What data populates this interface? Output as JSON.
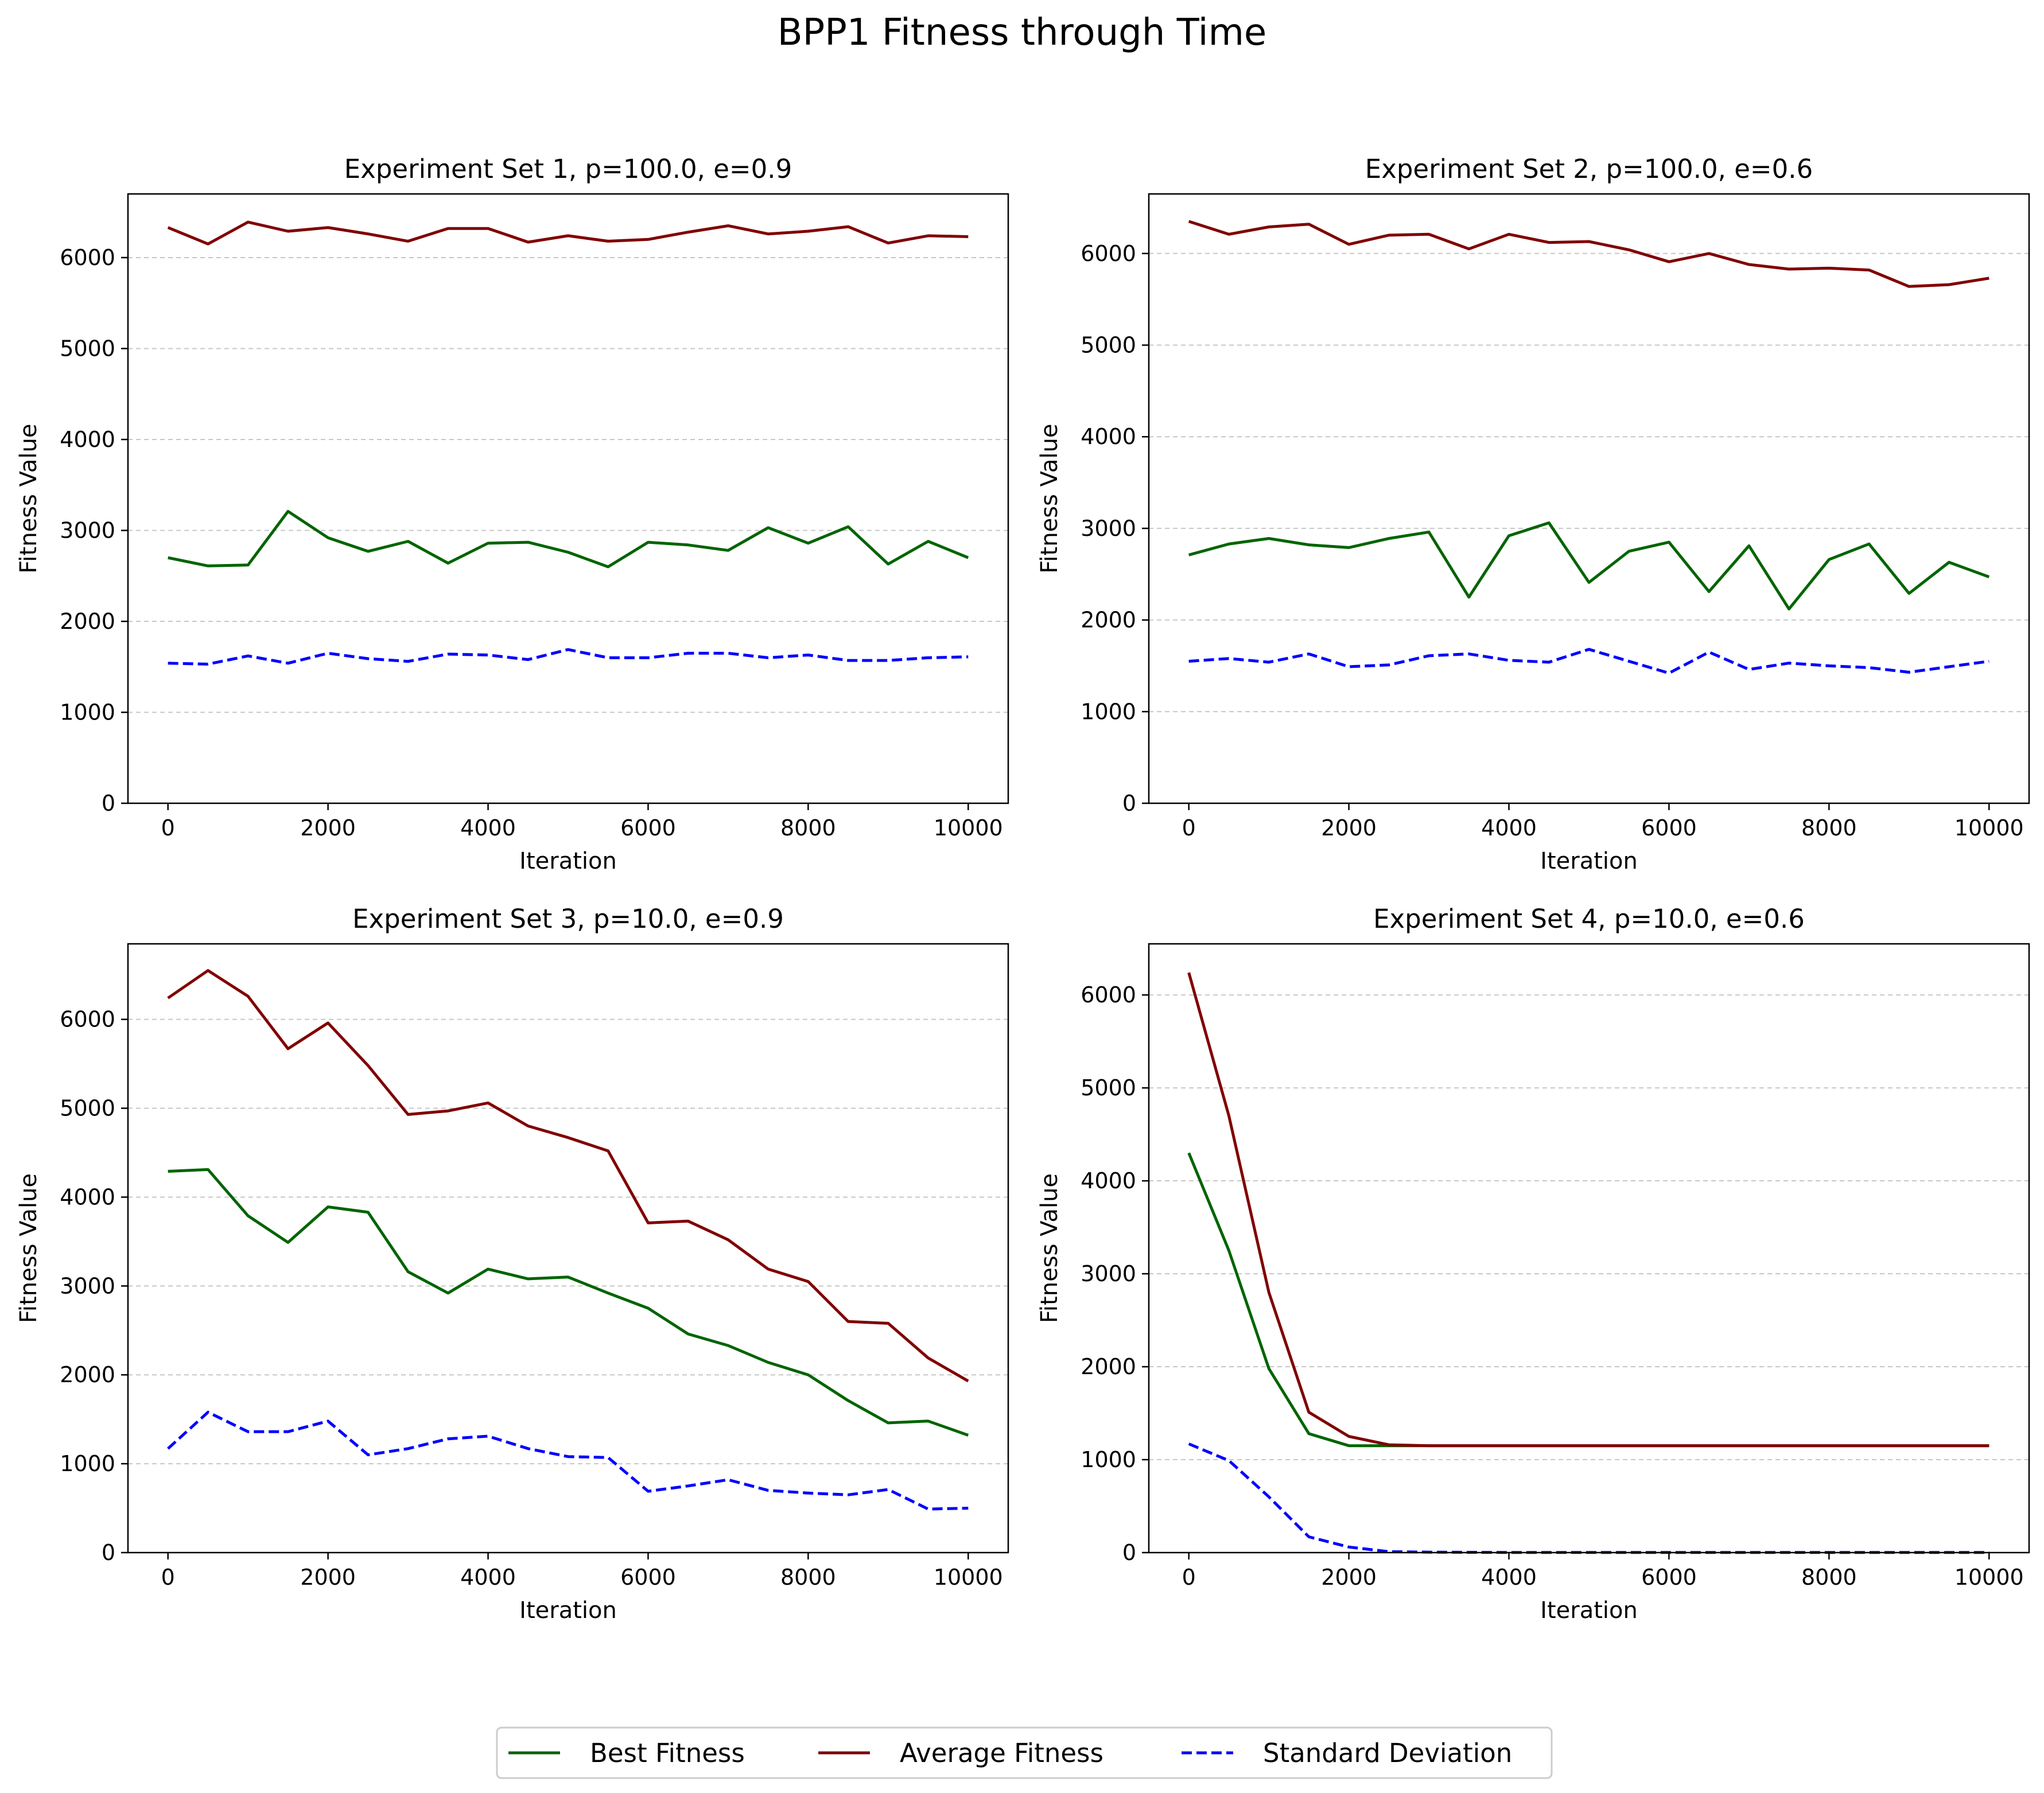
{
  "figure": {
    "suptitle": "BPP1 Fitness through Time"
  },
  "legend": {
    "placement": "bottom-center",
    "entries": [
      {
        "label": "Best Fitness",
        "color": "#006400",
        "dash": "solid"
      },
      {
        "label": "Average Fitness",
        "color": "#800000",
        "dash": "solid"
      },
      {
        "label": "Standard Deviation",
        "color": "#0000FF",
        "dash": "dashed"
      }
    ]
  },
  "chart_data": [
    {
      "type": "line",
      "title": "Experiment Set 1, p=100.0, e=0.9",
      "xlabel": "Iteration",
      "ylabel": "Fitness Value",
      "xlim": [
        -500,
        10500
      ],
      "ylim": [
        0,
        6700
      ],
      "xticks": [
        0,
        2000,
        4000,
        6000,
        8000,
        10000
      ],
      "yticks": [
        0,
        1000,
        2000,
        3000,
        4000,
        5000,
        6000
      ],
      "grid": "y-dashed",
      "x": [
        0,
        500,
        1000,
        1500,
        2000,
        2500,
        3000,
        3500,
        4000,
        4500,
        5000,
        5500,
        6000,
        6500,
        7000,
        7500,
        8000,
        8500,
        9000,
        9500,
        10000
      ],
      "series": [
        {
          "name": "Best Fitness",
          "color": "#006400",
          "dash": "solid",
          "values": [
            2700,
            2610,
            2620,
            3210,
            2920,
            2770,
            2880,
            2640,
            2860,
            2870,
            2760,
            2600,
            2870,
            2840,
            2780,
            3030,
            2860,
            3040,
            2630,
            2880,
            2700
          ]
        },
        {
          "name": "Average Fitness",
          "color": "#800000",
          "dash": "solid",
          "values": [
            6330,
            6150,
            6390,
            6290,
            6330,
            6260,
            6180,
            6320,
            6320,
            6170,
            6240,
            6180,
            6200,
            6280,
            6350,
            6260,
            6290,
            6340,
            6160,
            6240,
            6230
          ]
        },
        {
          "name": "Standard Deviation",
          "color": "#0000FF",
          "dash": "dashed",
          "values": [
            1540,
            1530,
            1620,
            1540,
            1650,
            1590,
            1560,
            1640,
            1630,
            1580,
            1690,
            1600,
            1600,
            1650,
            1650,
            1600,
            1630,
            1570,
            1570,
            1600,
            1610
          ]
        }
      ]
    },
    {
      "type": "line",
      "title": "Experiment Set 2, p=100.0, e=0.6",
      "xlabel": "Iteration",
      "ylabel": "Fitness Value",
      "xlim": [
        -500,
        10500
      ],
      "ylim": [
        0,
        6650
      ],
      "xticks": [
        0,
        2000,
        4000,
        6000,
        8000,
        10000
      ],
      "yticks": [
        0,
        1000,
        2000,
        3000,
        4000,
        5000,
        6000
      ],
      "grid": "y-dashed",
      "x": [
        0,
        500,
        1000,
        1500,
        2000,
        2500,
        3000,
        3500,
        4000,
        4500,
        5000,
        5500,
        6000,
        6500,
        7000,
        7500,
        8000,
        8500,
        9000,
        9500,
        10000
      ],
      "series": [
        {
          "name": "Best Fitness",
          "color": "#006400",
          "dash": "solid",
          "values": [
            2710,
            2830,
            2890,
            2820,
            2790,
            2890,
            2960,
            2250,
            2920,
            3060,
            2410,
            2750,
            2850,
            2310,
            2810,
            2120,
            2660,
            2830,
            2290,
            2630,
            2470
          ]
        },
        {
          "name": "Average Fitness",
          "color": "#800000",
          "dash": "solid",
          "values": [
            6350,
            6210,
            6290,
            6320,
            6100,
            6200,
            6210,
            6050,
            6210,
            6120,
            6130,
            6040,
            5910,
            6000,
            5880,
            5830,
            5840,
            5820,
            5640,
            5660,
            5730
          ]
        },
        {
          "name": "Standard Deviation",
          "color": "#0000FF",
          "dash": "dashed",
          "values": [
            1550,
            1580,
            1540,
            1630,
            1490,
            1510,
            1610,
            1630,
            1560,
            1540,
            1680,
            1550,
            1420,
            1650,
            1460,
            1530,
            1500,
            1480,
            1430,
            1490,
            1550
          ]
        }
      ]
    },
    {
      "type": "line",
      "title": "Experiment Set 3, p=10.0, e=0.9",
      "xlabel": "Iteration",
      "ylabel": "Fitness Value",
      "xlim": [
        -500,
        10500
      ],
      "ylim": [
        0,
        6850
      ],
      "xticks": [
        0,
        2000,
        4000,
        6000,
        8000,
        10000
      ],
      "yticks": [
        0,
        1000,
        2000,
        3000,
        4000,
        5000,
        6000
      ],
      "grid": "y-dashed",
      "x": [
        0,
        500,
        1000,
        1500,
        2000,
        2500,
        3000,
        3500,
        4000,
        4500,
        5000,
        5500,
        6000,
        6500,
        7000,
        7500,
        8000,
        8500,
        9000,
        9500,
        10000
      ],
      "series": [
        {
          "name": "Best Fitness",
          "color": "#006400",
          "dash": "solid",
          "values": [
            4290,
            4310,
            3790,
            3490,
            3890,
            3830,
            3160,
            2920,
            3190,
            3080,
            3100,
            2920,
            2750,
            2460,
            2330,
            2140,
            2000,
            1710,
            1460,
            1480,
            1320
          ]
        },
        {
          "name": "Average Fitness",
          "color": "#800000",
          "dash": "solid",
          "values": [
            6240,
            6550,
            6260,
            5670,
            5960,
            5480,
            4930,
            4970,
            5060,
            4800,
            4670,
            4520,
            3710,
            3730,
            3520,
            3190,
            3050,
            2600,
            2580,
            2190,
            1930
          ]
        },
        {
          "name": "Standard Deviation",
          "color": "#0000FF",
          "dash": "dashed",
          "values": [
            1170,
            1580,
            1360,
            1360,
            1480,
            1100,
            1170,
            1280,
            1310,
            1170,
            1080,
            1070,
            690,
            750,
            820,
            700,
            670,
            650,
            710,
            490,
            500
          ]
        }
      ]
    },
    {
      "type": "line",
      "title": "Experiment Set 4, p=10.0, e=0.6",
      "xlabel": "Iteration",
      "ylabel": "Fitness Value",
      "xlim": [
        -500,
        10500
      ],
      "ylim": [
        0,
        6550
      ],
      "xticks": [
        0,
        2000,
        4000,
        6000,
        8000,
        10000
      ],
      "yticks": [
        0,
        1000,
        2000,
        3000,
        4000,
        5000,
        6000
      ],
      "grid": "y-dashed",
      "x": [
        0,
        500,
        1000,
        1500,
        2000,
        2500,
        3000,
        3500,
        4000,
        4500,
        5000,
        5500,
        6000,
        6500,
        7000,
        7500,
        8000,
        8500,
        9000,
        9500,
        10000
      ],
      "series": [
        {
          "name": "Best Fitness",
          "color": "#006400",
          "dash": "solid",
          "values": [
            4300,
            3250,
            1980,
            1280,
            1150,
            1150,
            1150,
            1150,
            1150,
            1150,
            1150,
            1150,
            1150,
            1150,
            1150,
            1150,
            1150,
            1150,
            1150,
            1150,
            1150
          ]
        },
        {
          "name": "Average Fitness",
          "color": "#800000",
          "dash": "solid",
          "values": [
            6240,
            4700,
            2800,
            1510,
            1250,
            1160,
            1150,
            1150,
            1150,
            1150,
            1150,
            1150,
            1150,
            1150,
            1150,
            1150,
            1150,
            1150,
            1150,
            1150,
            1150
          ]
        },
        {
          "name": "Standard Deviation",
          "color": "#0000FF",
          "dash": "dashed",
          "values": [
            1170,
            990,
            600,
            170,
            60,
            10,
            5,
            3,
            2,
            2,
            2,
            2,
            2,
            2,
            2,
            2,
            2,
            2,
            2,
            2,
            2
          ]
        }
      ]
    }
  ]
}
